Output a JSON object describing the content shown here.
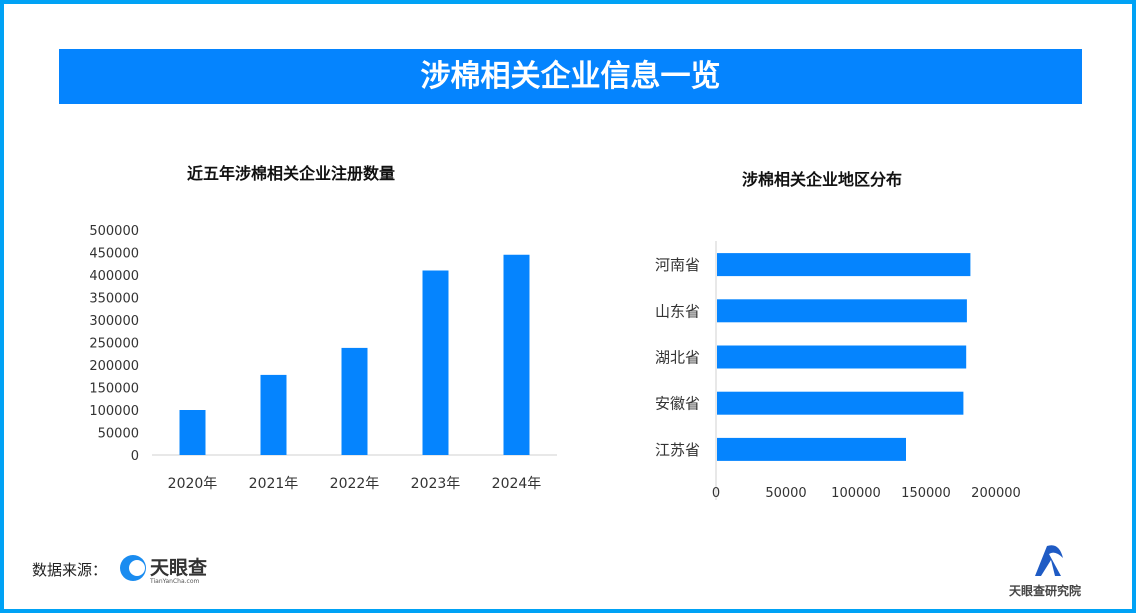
{
  "title": "涉棉相关企业信息一览",
  "colors": {
    "bar": "#0584fe",
    "banner": "#0584fe",
    "border": "#00a2f5"
  },
  "chart_data": [
    {
      "type": "bar",
      "title": "近五年涉棉相关企业注册数量",
      "categories": [
        "2020年",
        "2021年",
        "2022年",
        "2023年",
        "2024年"
      ],
      "values": [
        100000,
        178000,
        238000,
        410000,
        445000
      ],
      "ylim": [
        0,
        500000
      ],
      "yticks": [
        "0",
        "50000",
        "100000",
        "150000",
        "200000",
        "250000",
        "300000",
        "350000",
        "400000",
        "450000",
        "500000"
      ],
      "grid": false
    },
    {
      "type": "bar",
      "orientation": "horizontal",
      "title": "涉棉相关企业地区分布",
      "categories": [
        "河南省",
        "山东省",
        "湖北省",
        "安徽省",
        "江苏省"
      ],
      "values": [
        181000,
        178500,
        178000,
        176000,
        135000
      ],
      "xlim": [
        0,
        200000
      ],
      "xticks": [
        "0",
        "50000",
        "100000",
        "150000",
        "200000"
      ],
      "grid": false
    }
  ],
  "footer": {
    "source_label": "数据来源：",
    "source_logo": "天眼查 TianYanCha.com",
    "brand": "天眼查研究院"
  }
}
